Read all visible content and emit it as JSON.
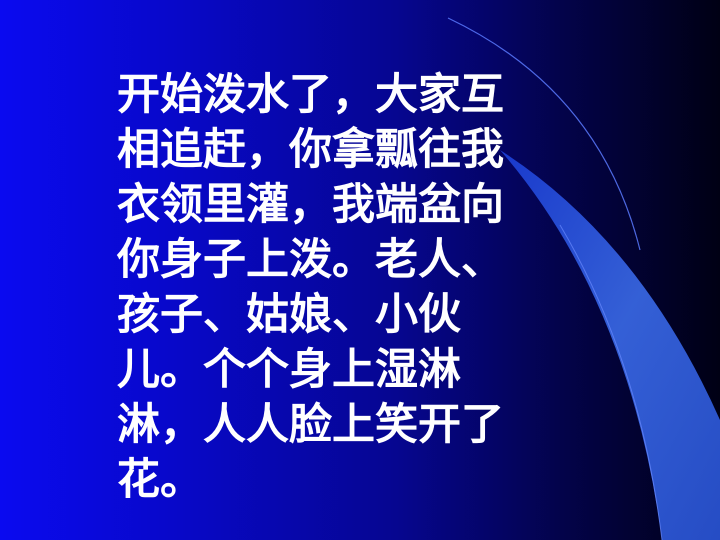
{
  "slide": {
    "colors": {
      "background_left": "#0a0af0",
      "background_right": "#000014",
      "text": "#ffffff",
      "accent_band": "#3a6ae8"
    },
    "lines": [
      "开始泼水了，大家互",
      "相追赶，你拿瓢往我",
      "衣领里灌，我端盆向",
      "你身子上泼。老人、",
      "孩子、姑娘、小伙",
      "儿。个个身上湿淋",
      "淋，人人脸上笑开了",
      "花。"
    ]
  }
}
